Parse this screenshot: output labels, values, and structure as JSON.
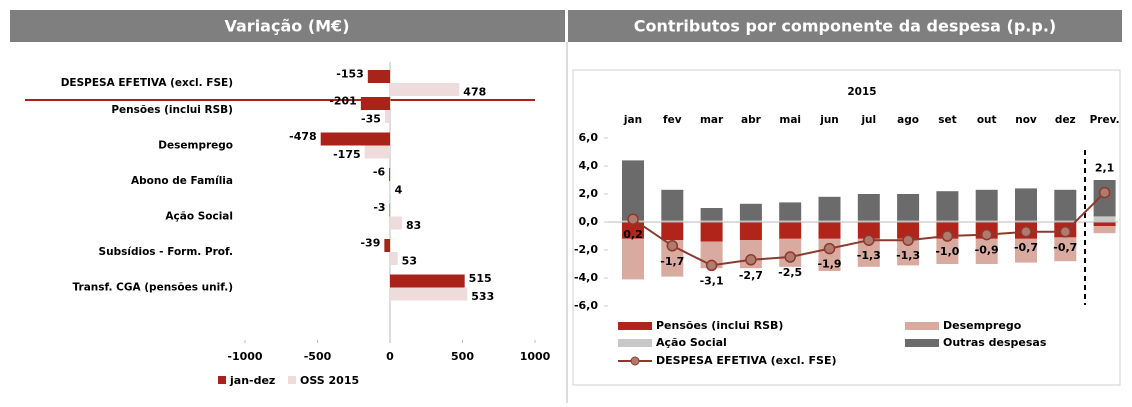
{
  "chart_data": [
    {
      "type": "hbar",
      "title": "Variação (M€)",
      "categories": [
        "DESPESA EFETIVA (excl. FSE)",
        "Pensões (inclui RSB)",
        "Desemprego",
        "Abono de Família",
        "Ação Social",
        "Subsídios - Form. Prof.",
        "Transf. CGA (pensões unif.)"
      ],
      "series": [
        {
          "name": "jan-dez",
          "color": "#a8231a",
          "values": [
            -153,
            -201,
            -478,
            -6,
            -3,
            -39,
            515
          ]
        },
        {
          "name": "OSS 2015",
          "color": "#eedcdc",
          "values": [
            478,
            -35,
            -175,
            4,
            83,
            53,
            533
          ]
        }
      ],
      "xlim": [
        -1000,
        1000
      ],
      "xticks": [
        -1000,
        -500,
        0,
        500,
        1000
      ],
      "legend": "bottom"
    },
    {
      "type": "stacked",
      "title": "Contributos por componente da despesa (p.p.)",
      "subtitle": "2015",
      "categories": [
        "jan",
        "fev",
        "mar",
        "abr",
        "mai",
        "jun",
        "jul",
        "ago",
        "set",
        "out",
        "nov",
        "dez",
        "Prev."
      ],
      "series": [
        {
          "name": "Pensões (inclui RSB)",
          "color": "#b0241a",
          "values": [
            -1.2,
            -1.3,
            -1.4,
            -1.3,
            -1.2,
            -1.2,
            -1.2,
            -1.2,
            -1.2,
            -1.2,
            -1.2,
            -1.1,
            -0.3
          ]
        },
        {
          "name": "Desemprego",
          "color": "#d9aaa0",
          "values": [
            -2.9,
            -2.6,
            -1.9,
            -2.0,
            -2.0,
            -2.3,
            -2.0,
            -1.9,
            -1.8,
            -1.8,
            -1.7,
            -1.7,
            -0.5
          ]
        },
        {
          "name": "Ação Social",
          "color": "#c8c8c8",
          "values": [
            0.1,
            0.1,
            0.1,
            0.1,
            0.1,
            0.1,
            0.1,
            0.1,
            0.1,
            0.1,
            0.1,
            0.1,
            0.4
          ]
        },
        {
          "name": "Outras despesas",
          "color": "#6b6b6b",
          "values": [
            4.3,
            2.2,
            0.9,
            1.2,
            1.3,
            1.7,
            1.9,
            1.9,
            2.1,
            2.2,
            2.3,
            2.2,
            2.6
          ]
        },
        {
          "name": "DESPESA EFETIVA  (excl. FSE)",
          "color": "#8b3a2e",
          "type": "line",
          "values": [
            0.2,
            -1.7,
            -3.1,
            -2.7,
            -2.5,
            -1.9,
            -1.3,
            -1.3,
            -1.0,
            -0.9,
            -0.7,
            -0.7,
            2.1
          ],
          "value_labels": [
            "0,2",
            "-1,7",
            "-3,1",
            "-2,7",
            "-2,5",
            "-1,9",
            "-1,3",
            "-1,3",
            "-1,0",
            "-0,9",
            "-0,7",
            "-0,7",
            "2,1"
          ]
        }
      ],
      "ylim": [
        -6,
        6
      ],
      "yticks": [
        {
          "value": 6,
          "label": "6,0"
        },
        {
          "value": 4,
          "label": "4,0"
        },
        {
          "value": 2,
          "label": "2,0"
        },
        {
          "value": 0,
          "label": "0,0"
        },
        {
          "value": -2,
          "label": "-2,0"
        },
        {
          "value": -4,
          "label": "-4,0"
        },
        {
          "value": -6,
          "label": "-6,0"
        }
      ],
      "legend": "bottom"
    }
  ]
}
